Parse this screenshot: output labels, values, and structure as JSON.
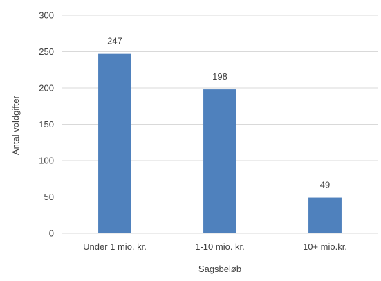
{
  "chart_data": {
    "type": "bar",
    "title": "",
    "xlabel": "Sagsbeløb",
    "ylabel": "Antal voldgifter",
    "categories": [
      "Under 1 mio. kr.",
      "1-10 mio. kr.",
      "10+ mio.kr."
    ],
    "values": [
      247,
      198,
      49
    ],
    "data_labels": [
      "247",
      "198",
      "49"
    ],
    "ylim": [
      0,
      300
    ],
    "yticks": [
      0,
      50,
      100,
      150,
      200,
      250,
      300
    ],
    "grid": true,
    "legend": "none",
    "bar_color": "#4f81bd",
    "grid_color": "#d9d9d9",
    "text_color": "#404040"
  }
}
